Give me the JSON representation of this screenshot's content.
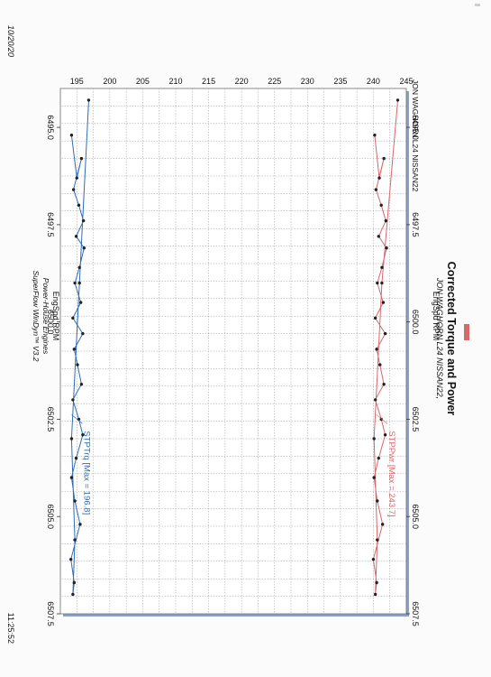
{
  "page": {
    "date": "10/20/20",
    "time": "11:25:52",
    "header_line": "JON WAGHORN L24 NISSAN22"
  },
  "colors": {
    "torque": "#2f6db5",
    "power": "#d6686b",
    "point": "#222222",
    "legend_swatch": "#d46a6a",
    "plot_frame": "#8aa2c8"
  },
  "chart_data": {
    "type": "line",
    "title": "Corrected Torque and Power",
    "subtitle": "JON WAGHORN L24 NISSAN22,",
    "x_label": "EngSpd RPM",
    "xlim": [
      6494.0,
      6507.5
    ],
    "ylim": [
      192.5,
      245
    ],
    "grid": true,
    "x_ticks": [
      "6495.0",
      "6497.5",
      "6500.0",
      "6502.5",
      "6505.0",
      "6507.5"
    ],
    "y_ticks": [
      "195",
      "200",
      "205",
      "210",
      "215",
      "220",
      "225",
      "230",
      "235",
      "240",
      "245"
    ],
    "footer": [
      "Power-House Engines",
      "SuperFlow WinDyn™ V3.2"
    ],
    "series": [
      {
        "name": "STPPwr",
        "annotation": "STPPwr [Max = 243.7]",
        "x": [
          6495.2,
          6496.3,
          6495.8,
          6496.6,
          6497.0,
          6497.4,
          6497.8,
          6498.1,
          6498.6,
          6499.0,
          6499.5,
          6499.9,
          6500.3,
          6500.7,
          6501.1,
          6501.6,
          6502.0,
          6502.5,
          6502.9,
          6503.5,
          6504.0,
          6504.6,
          6505.2,
          6506.1,
          6506.7,
          6507.0,
          6505.6,
          6503.0,
          6499.0,
          6494.3
        ],
        "y": [
          240.2,
          240.9,
          241.6,
          240.4,
          241.2,
          241.9,
          240.8,
          242.0,
          241.3,
          240.6,
          241.5,
          240.3,
          241.8,
          240.5,
          241.0,
          241.6,
          240.3,
          241.2,
          241.8,
          240.8,
          240.1,
          240.6,
          241.4,
          240.0,
          240.5,
          240.3,
          240.6,
          240.1,
          241.3,
          243.7
        ]
      },
      {
        "name": "STPTrq",
        "annotation": "STPTrq [Max = 196.8]",
        "x": [
          6495.2,
          6496.3,
          6495.8,
          6496.6,
          6497.0,
          6497.4,
          6497.8,
          6498.1,
          6498.6,
          6499.0,
          6499.5,
          6499.9,
          6500.3,
          6500.7,
          6501.1,
          6501.6,
          6502.0,
          6502.5,
          6502.9,
          6503.5,
          6504.0,
          6504.6,
          6505.2,
          6506.1,
          6506.7,
          6507.0,
          6505.6,
          6503.0,
          6499.0,
          6494.3
        ],
        "y": [
          194.2,
          195.0,
          195.7,
          194.5,
          195.3,
          196.0,
          194.9,
          196.1,
          195.4,
          194.7,
          195.6,
          194.4,
          195.9,
          194.6,
          195.1,
          195.7,
          194.4,
          195.3,
          195.9,
          194.9,
          194.2,
          194.7,
          195.5,
          194.1,
          194.6,
          194.4,
          194.7,
          194.2,
          195.4,
          196.8
        ]
      }
    ]
  }
}
